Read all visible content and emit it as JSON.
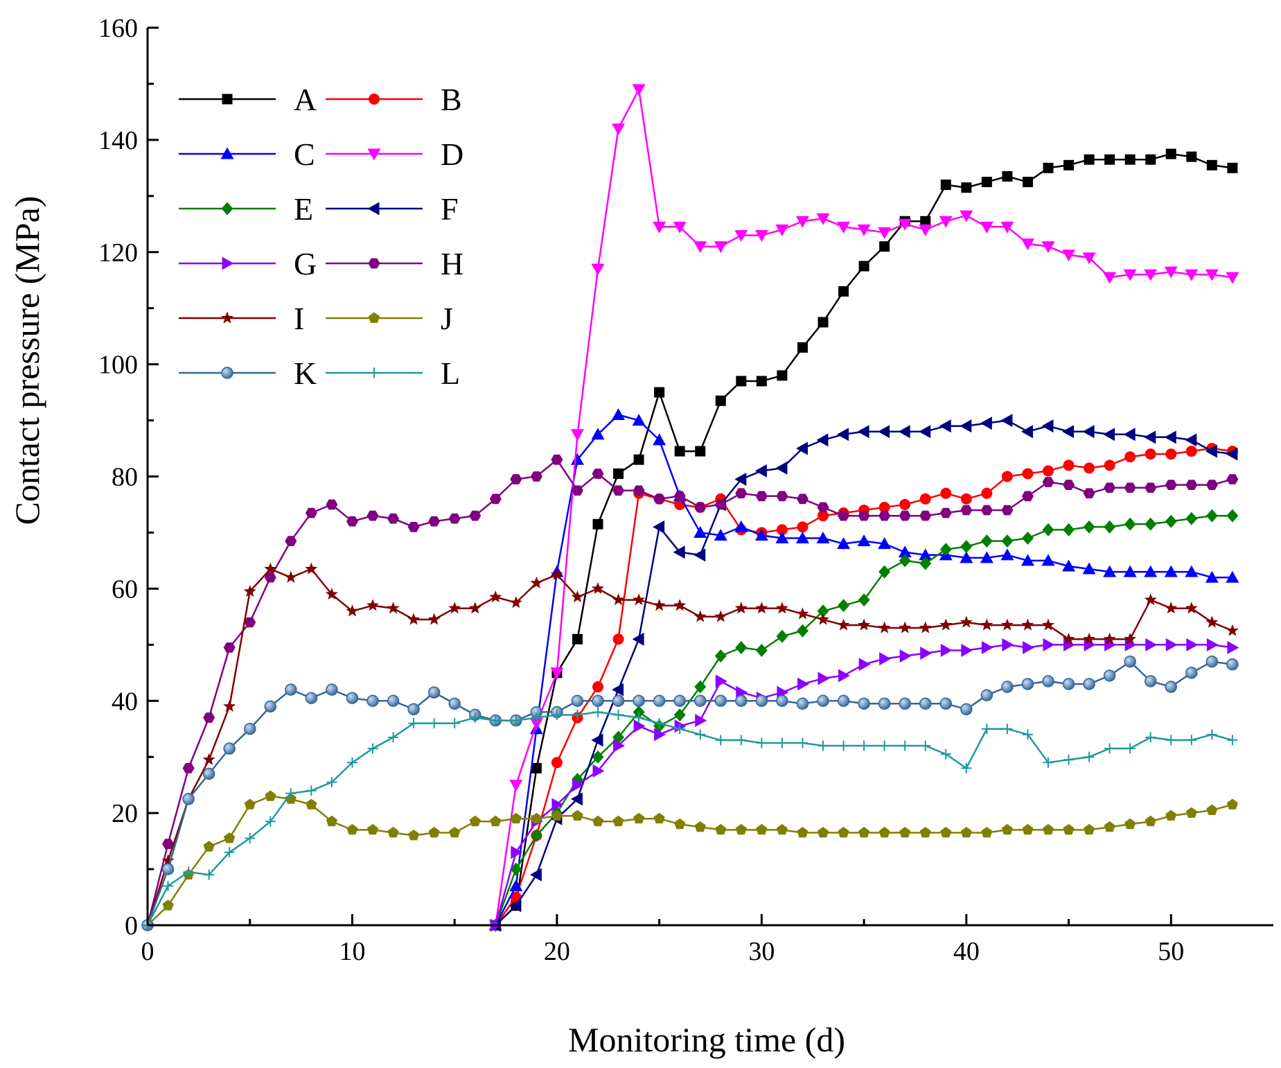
{
  "chart_data": {
    "type": "line",
    "xlabel": "Monitoring time (d)",
    "ylabel": "Contact pressure (MPa)",
    "xlim": [
      0,
      55
    ],
    "ylim": [
      0,
      160
    ],
    "xticks": [
      0,
      10,
      20,
      30,
      40,
      50
    ],
    "yticks": [
      0,
      20,
      40,
      60,
      80,
      100,
      120,
      140,
      160
    ],
    "xtick_labels": [
      "0",
      "10",
      "20",
      "30",
      "40",
      "50"
    ],
    "ytick_labels": [
      "0",
      "20",
      "40",
      "60",
      "80",
      "100",
      "120",
      "140",
      "160"
    ],
    "legend_position": "top-left",
    "series": [
      {
        "name": "A",
        "color": "#000000",
        "marker": "square",
        "x": [
          17,
          18,
          19,
          20,
          21,
          22,
          23,
          24,
          25,
          26,
          27,
          28,
          29,
          30,
          31,
          32,
          33,
          34,
          35,
          36,
          37,
          38,
          39,
          40,
          41,
          42,
          43,
          44,
          45,
          46,
          47,
          48,
          49,
          50,
          51,
          52,
          53
        ],
        "y": [
          0,
          3.5,
          28,
          45,
          51,
          71.5,
          80.5,
          83,
          95,
          84.5,
          84.5,
          93.5,
          97,
          97,
          98,
          103,
          107.5,
          113,
          117.5,
          121,
          125.5,
          125.5,
          132,
          131.5,
          132.5,
          133.5,
          132.5,
          135,
          135.5,
          136.5,
          136.5,
          136.5,
          136.5,
          137.5,
          137,
          135.5,
          135
        ]
      },
      {
        "name": "B",
        "color": "#ff0000",
        "marker": "circle",
        "x": [
          17,
          18,
          19,
          20,
          21,
          22,
          23,
          24,
          25,
          26,
          27,
          28,
          29,
          30,
          31,
          32,
          33,
          34,
          35,
          36,
          37,
          38,
          39,
          40,
          41,
          42,
          43,
          44,
          45,
          46,
          47,
          48,
          49,
          50,
          51,
          52,
          53
        ],
        "y": [
          0,
          5,
          16,
          29,
          37,
          42.5,
          51,
          77,
          76,
          75,
          74.5,
          76,
          70.5,
          70,
          70.5,
          71,
          73,
          73.5,
          74,
          74.5,
          75,
          76,
          77,
          76,
          77,
          80,
          80.5,
          81,
          82,
          81.5,
          82,
          83.5,
          84,
          84,
          84.5,
          85,
          84.5
        ]
      },
      {
        "name": "C",
        "color": "#0000ff",
        "marker": "triangle-up",
        "x": [
          17,
          18,
          19,
          20,
          21,
          22,
          23,
          24,
          25,
          26,
          27,
          28,
          29,
          30,
          31,
          32,
          33,
          34,
          35,
          36,
          37,
          38,
          39,
          40,
          41,
          42,
          43,
          44,
          45,
          46,
          47,
          48,
          49,
          50,
          51,
          52,
          53
        ],
        "y": [
          0,
          7,
          35,
          63,
          83,
          87.5,
          91,
          90,
          86.5,
          76.5,
          70,
          69.5,
          71,
          69.5,
          69,
          69,
          69,
          68,
          68.5,
          68,
          66.5,
          66,
          66,
          65.5,
          65.5,
          66,
          65,
          65,
          64,
          63.5,
          63,
          63,
          63,
          63,
          63,
          62,
          62
        ]
      },
      {
        "name": "D",
        "color": "#ff00ff",
        "marker": "triangle-down",
        "x": [
          17,
          18,
          19,
          20,
          21,
          22,
          23,
          24,
          25,
          26,
          27,
          28,
          29,
          30,
          31,
          32,
          33,
          34,
          35,
          36,
          37,
          38,
          39,
          40,
          41,
          42,
          43,
          44,
          45,
          46,
          47,
          48,
          49,
          50,
          51,
          52,
          53
        ],
        "y": [
          0,
          25,
          36,
          45,
          87.5,
          117,
          142,
          149,
          124.5,
          124.5,
          121,
          121,
          123,
          123,
          124,
          125.5,
          126,
          124.5,
          124,
          123.5,
          125,
          124,
          125.5,
          126.5,
          124.5,
          124.5,
          121.5,
          121,
          119.5,
          119,
          115.5,
          116,
          116,
          116.5,
          116,
          116,
          115.5
        ]
      },
      {
        "name": "E",
        "color": "#008000",
        "marker": "diamond",
        "x": [
          17,
          18,
          19,
          20,
          21,
          22,
          23,
          24,
          25,
          26,
          27,
          28,
          29,
          30,
          31,
          32,
          33,
          34,
          35,
          36,
          37,
          38,
          39,
          40,
          41,
          42,
          43,
          44,
          45,
          46,
          47,
          48,
          49,
          50,
          51,
          52,
          53
        ],
        "y": [
          0,
          10,
          16,
          20,
          26,
          30,
          33.5,
          38,
          35.5,
          37.5,
          42.5,
          48,
          49.5,
          49,
          51.5,
          52.5,
          56,
          57,
          58,
          63,
          65,
          64.5,
          67,
          67.5,
          68.5,
          68.5,
          69,
          70.5,
          70.5,
          71,
          71,
          71.5,
          71.5,
          72,
          72.5,
          73,
          73
        ]
      },
      {
        "name": "F",
        "color": "#000080",
        "marker": "triangle-left",
        "x": [
          17,
          18,
          19,
          20,
          21,
          22,
          23,
          24,
          25,
          26,
          27,
          28,
          29,
          30,
          31,
          32,
          33,
          34,
          35,
          36,
          37,
          38,
          39,
          40,
          41,
          42,
          43,
          44,
          45,
          46,
          47,
          48,
          49,
          50,
          51,
          52,
          53
        ],
        "y": [
          0,
          3.5,
          9,
          19,
          22.5,
          33,
          42,
          51,
          71,
          66.5,
          66,
          75,
          79.5,
          81,
          81.5,
          85,
          86.5,
          87.5,
          88,
          88,
          88,
          88,
          89,
          89,
          89.5,
          90,
          88,
          89,
          88,
          88,
          87.5,
          87.5,
          87,
          87,
          86.5,
          84.5,
          84
        ]
      },
      {
        "name": "G",
        "color": "#8b00ff",
        "marker": "triangle-right",
        "x": [
          17,
          18,
          19,
          20,
          21,
          22,
          23,
          24,
          25,
          26,
          27,
          28,
          29,
          30,
          31,
          32,
          33,
          34,
          35,
          36,
          37,
          38,
          39,
          40,
          41,
          42,
          43,
          44,
          45,
          46,
          47,
          48,
          49,
          50,
          51,
          52,
          53
        ],
        "y": [
          0,
          13,
          18.5,
          21.5,
          25,
          27.5,
          32,
          35.5,
          34,
          35.5,
          36.5,
          43.5,
          41.5,
          40.5,
          41.5,
          43,
          44,
          44.5,
          46.5,
          47.5,
          48,
          48.5,
          49,
          49,
          49.5,
          50,
          49.5,
          50,
          50,
          50,
          50,
          50,
          50,
          50,
          50,
          50,
          49.5
        ]
      },
      {
        "name": "H",
        "color": "#800080",
        "marker": "hexagon",
        "x": [
          0,
          1,
          2,
          3,
          4,
          5,
          6,
          7,
          8,
          9,
          10,
          11,
          12,
          13,
          14,
          15,
          16,
          17,
          18,
          19,
          20,
          21,
          22,
          23,
          24,
          25,
          26,
          27,
          28,
          29,
          30,
          31,
          32,
          33,
          34,
          35,
          36,
          37,
          38,
          39,
          40,
          41,
          42,
          43,
          44,
          45,
          46,
          47,
          48,
          49,
          50,
          51,
          52,
          53
        ],
        "y": [
          0,
          14.5,
          28,
          37,
          49.5,
          54,
          62,
          68.5,
          73.5,
          75,
          72,
          73,
          72.5,
          71,
          72,
          72.5,
          73,
          76,
          79.5,
          80,
          83,
          77.5,
          80.5,
          77.5,
          77.5,
          76,
          76.5,
          74.5,
          75,
          77,
          76.5,
          76.5,
          76,
          74.5,
          73,
          73,
          73,
          73,
          73,
          73.5,
          74,
          74,
          74,
          76.5,
          79,
          78.5,
          77,
          78,
          78,
          78,
          78.5,
          78.5,
          78.5,
          79.5
        ]
      },
      {
        "name": "I",
        "color": "#800000",
        "marker": "star",
        "x": [
          0,
          1,
          2,
          3,
          4,
          5,
          6,
          7,
          8,
          9,
          10,
          11,
          12,
          13,
          14,
          15,
          16,
          17,
          18,
          19,
          20,
          21,
          22,
          23,
          24,
          25,
          26,
          27,
          28,
          29,
          30,
          31,
          32,
          33,
          34,
          35,
          36,
          37,
          38,
          39,
          40,
          41,
          42,
          43,
          44,
          45,
          46,
          47,
          48,
          49,
          50,
          51,
          52,
          53
        ],
        "y": [
          0,
          11.5,
          22.5,
          29.5,
          39,
          59.5,
          63.5,
          62,
          63.5,
          59,
          56,
          57,
          56.5,
          54.5,
          54.5,
          56.5,
          56.5,
          58.5,
          57.5,
          61,
          62.5,
          58.5,
          60,
          58,
          58,
          57,
          57,
          55,
          55,
          56.5,
          56.5,
          56.5,
          55.5,
          54.5,
          53.5,
          53.5,
          53,
          53,
          53,
          53.5,
          54,
          53.5,
          53.5,
          53.5,
          53.5,
          51,
          51,
          51,
          51,
          58,
          56.5,
          56.5,
          54,
          52.5
        ]
      },
      {
        "name": "J",
        "color": "#808000",
        "marker": "pentagon",
        "x": [
          0,
          1,
          2,
          3,
          4,
          5,
          6,
          7,
          8,
          9,
          10,
          11,
          12,
          13,
          14,
          15,
          16,
          17,
          18,
          19,
          20,
          21,
          22,
          23,
          24,
          25,
          26,
          27,
          28,
          29,
          30,
          31,
          32,
          33,
          34,
          35,
          36,
          37,
          38,
          39,
          40,
          41,
          42,
          43,
          44,
          45,
          46,
          47,
          48,
          49,
          50,
          51,
          52,
          53
        ],
        "y": [
          0,
          3.5,
          9,
          14,
          15.5,
          21.5,
          23,
          22.5,
          21.5,
          18.5,
          17,
          17,
          16.5,
          16,
          16.5,
          16.5,
          18.5,
          18.5,
          19,
          19,
          19.5,
          19.5,
          18.5,
          18.5,
          19,
          19,
          18,
          17.5,
          17,
          17,
          17,
          17,
          16.5,
          16.5,
          16.5,
          16.5,
          16.5,
          16.5,
          16.5,
          16.5,
          16.5,
          16.5,
          17,
          17,
          17,
          17,
          17,
          17.5,
          18,
          18.5,
          19.5,
          20,
          20.5,
          21.5
        ]
      },
      {
        "name": "K",
        "color": "#336699",
        "marker": "circle-shaded",
        "x": [
          0,
          1,
          2,
          3,
          4,
          5,
          6,
          7,
          8,
          9,
          10,
          11,
          12,
          13,
          14,
          15,
          16,
          17,
          18,
          19,
          20,
          21,
          22,
          23,
          24,
          25,
          26,
          27,
          28,
          29,
          30,
          31,
          32,
          33,
          34,
          35,
          36,
          37,
          38,
          39,
          40,
          41,
          42,
          43,
          44,
          45,
          46,
          47,
          48,
          49,
          50,
          51,
          52,
          53
        ],
        "y": [
          0,
          10,
          22.5,
          27,
          31.5,
          35,
          39,
          42,
          40.5,
          42,
          40.5,
          40,
          40,
          38.5,
          41.5,
          39.5,
          37.5,
          36.5,
          36.5,
          38,
          38,
          40,
          40,
          40,
          40,
          40,
          40,
          40,
          40,
          40,
          40,
          40,
          39.5,
          40,
          40,
          39.5,
          39.5,
          39.5,
          39.5,
          39.5,
          38.5,
          41,
          42.5,
          43,
          43.5,
          43,
          43,
          44.5,
          47,
          43.5,
          42.5,
          45,
          47,
          46.5
        ]
      },
      {
        "name": "L",
        "color": "#1e9a9a",
        "marker": "plus",
        "x": [
          0,
          1,
          2,
          3,
          4,
          5,
          6,
          7,
          8,
          9,
          10,
          11,
          12,
          13,
          14,
          15,
          16,
          17,
          18,
          19,
          20,
          21,
          22,
          23,
          24,
          25,
          26,
          27,
          28,
          29,
          30,
          31,
          32,
          33,
          34,
          35,
          36,
          37,
          38,
          39,
          40,
          41,
          42,
          43,
          44,
          45,
          46,
          47,
          48,
          49,
          50,
          51,
          52,
          53
        ],
        "y": [
          0,
          7,
          9.5,
          9,
          13,
          15.5,
          18.5,
          23.5,
          24,
          25.5,
          29,
          31.5,
          33.5,
          36,
          36,
          36,
          37,
          36.5,
          36.5,
          37,
          37.5,
          37.5,
          38,
          37.5,
          37,
          36,
          35,
          34,
          33,
          33,
          32.5,
          32.5,
          32.5,
          32,
          32,
          32,
          32,
          32,
          32,
          30.5,
          28,
          35,
          35,
          34,
          29,
          29.5,
          30,
          31.5,
          31.5,
          33.5,
          33,
          33,
          34,
          33
        ]
      }
    ]
  }
}
